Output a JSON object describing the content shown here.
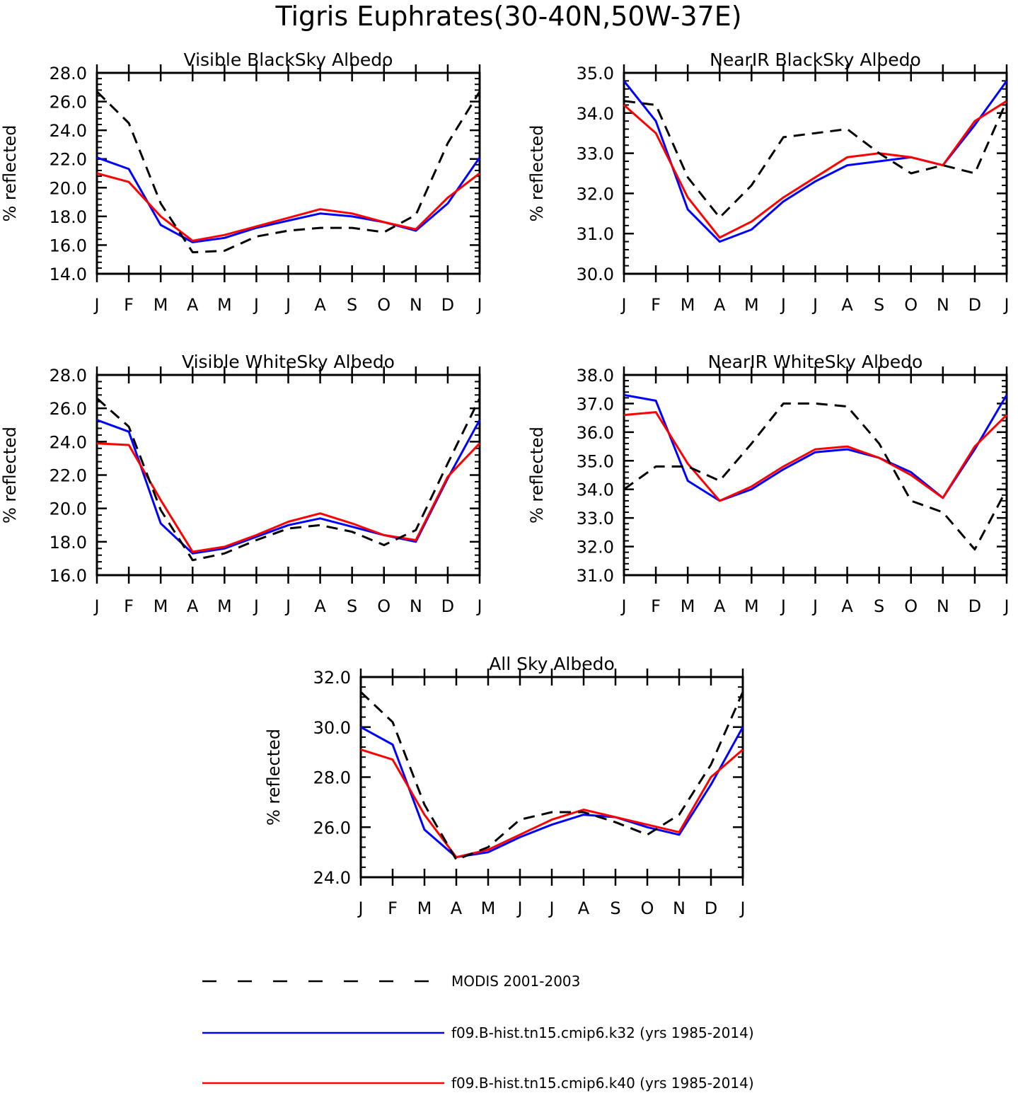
{
  "figure": {
    "title": "Tigris Euphrates(30-40N,50W-37E)"
  },
  "months": [
    "J",
    "F",
    "M",
    "A",
    "M",
    "J",
    "J",
    "A",
    "S",
    "O",
    "N",
    "D",
    "J"
  ],
  "series_styles": [
    {
      "key": "modis",
      "color": "#000000",
      "dashed": true
    },
    {
      "key": "k32",
      "color": "#0000ff",
      "dashed": false
    },
    {
      "key": "k40",
      "color": "#ff0000",
      "dashed": false
    }
  ],
  "legend": [
    {
      "key": "modis",
      "label": "MODIS 2001-2003",
      "color": "#000000",
      "dashed": true
    },
    {
      "key": "k32",
      "label": "f09.B-hist.tn15.cmip6.k32 (yrs 1985-2014)",
      "color": "#0000ff",
      "dashed": false
    },
    {
      "key": "k40",
      "label": "f09.B-hist.tn15.cmip6.k40 (yrs 1985-2014)",
      "color": "#ff0000",
      "dashed": false
    }
  ],
  "chart_data": [
    {
      "type": "line",
      "title": "Visible BlackSky Albedo",
      "ylabel": "% reflected",
      "ylim": [
        14,
        28
      ],
      "yticks": [
        "14.0",
        "16.0",
        "18.0",
        "20.0",
        "22.0",
        "24.0",
        "26.0",
        "28.0"
      ],
      "series": [
        {
          "name": "MODIS 2001-2003",
          "values": [
            26.7,
            24.5,
            18.9,
            15.5,
            15.6,
            16.6,
            17.0,
            17.2,
            17.2,
            16.9,
            18.1,
            23.1,
            26.7
          ]
        },
        {
          "name": "f09.B-hist.tn15.cmip6.k32 (yrs 1985-2014)",
          "values": [
            22.1,
            21.3,
            17.4,
            16.2,
            16.5,
            17.2,
            17.7,
            18.2,
            18.0,
            17.6,
            17.0,
            18.9,
            22.1
          ]
        },
        {
          "name": "f09.B-hist.tn15.cmip6.k40 (yrs 1985-2014)",
          "values": [
            21.0,
            20.4,
            18.0,
            16.3,
            16.7,
            17.3,
            17.9,
            18.5,
            18.2,
            17.6,
            17.1,
            19.3,
            21.0
          ]
        }
      ]
    },
    {
      "type": "line",
      "title": "NearIR BlackSky Albedo",
      "ylabel": "% reflected",
      "ylim": [
        30,
        35
      ],
      "yticks": [
        "30.0",
        "31.0",
        "32.0",
        "33.0",
        "34.0",
        "35.0"
      ],
      "series": [
        {
          "name": "MODIS 2001-2003",
          "values": [
            34.3,
            34.2,
            32.4,
            31.4,
            32.2,
            33.4,
            33.5,
            33.6,
            33.0,
            32.5,
            32.7,
            32.5,
            34.3
          ]
        },
        {
          "name": "f09.B-hist.tn15.cmip6.k32 (yrs 1985-2014)",
          "values": [
            34.8,
            33.8,
            31.6,
            30.8,
            31.1,
            31.8,
            32.3,
            32.7,
            32.8,
            32.9,
            32.7,
            33.7,
            34.8
          ]
        },
        {
          "name": "f09.B-hist.tn15.cmip6.k40 (yrs 1985-2014)",
          "values": [
            34.2,
            33.5,
            31.9,
            30.9,
            31.3,
            31.9,
            32.4,
            32.9,
            33.0,
            32.9,
            32.7,
            33.8,
            34.3
          ]
        }
      ]
    },
    {
      "type": "line",
      "title": "Visible WhiteSky Albedo",
      "ylabel": "% reflected",
      "ylim": [
        16,
        28
      ],
      "yticks": [
        "16.0",
        "18.0",
        "20.0",
        "22.0",
        "24.0",
        "26.0",
        "28.0"
      ],
      "series": [
        {
          "name": "MODIS 2001-2003",
          "values": [
            26.6,
            24.9,
            19.9,
            16.9,
            17.3,
            18.1,
            18.8,
            19.0,
            18.6,
            17.8,
            18.7,
            22.7,
            26.6
          ]
        },
        {
          "name": "f09.B-hist.tn15.cmip6.k32 (yrs 1985-2014)",
          "values": [
            25.3,
            24.6,
            19.1,
            17.3,
            17.6,
            18.3,
            19.0,
            19.4,
            18.9,
            18.4,
            18.0,
            21.8,
            25.3
          ]
        },
        {
          "name": "f09.B-hist.tn15.cmip6.k40 (yrs 1985-2014)",
          "values": [
            23.9,
            23.8,
            20.5,
            17.4,
            17.7,
            18.4,
            19.2,
            19.7,
            19.1,
            18.4,
            18.1,
            21.9,
            23.9
          ]
        }
      ]
    },
    {
      "type": "line",
      "title": "NearIR WhiteSky Albedo",
      "ylabel": "% reflected",
      "ylim": [
        31,
        38
      ],
      "yticks": [
        "31.0",
        "32.0",
        "33.0",
        "34.0",
        "35.0",
        "36.0",
        "37.0",
        "38.0"
      ],
      "series": [
        {
          "name": "MODIS 2001-2003",
          "values": [
            34.0,
            34.8,
            34.8,
            34.3,
            35.6,
            37.0,
            37.0,
            36.9,
            35.6,
            33.6,
            33.2,
            31.9,
            34.0
          ]
        },
        {
          "name": "f09.B-hist.tn15.cmip6.k32 (yrs 1985-2014)",
          "values": [
            37.3,
            37.1,
            34.3,
            33.6,
            34.0,
            34.7,
            35.3,
            35.4,
            35.1,
            34.6,
            33.7,
            35.4,
            37.3
          ]
        },
        {
          "name": "f09.B-hist.tn15.cmip6.k40 (yrs 1985-2014)",
          "values": [
            36.6,
            36.7,
            34.9,
            33.6,
            34.1,
            34.8,
            35.4,
            35.5,
            35.1,
            34.5,
            33.7,
            35.5,
            36.6
          ]
        }
      ]
    },
    {
      "type": "line",
      "title": "All Sky Albedo",
      "ylabel": "% reflected",
      "ylim": [
        24,
        32
      ],
      "yticks": [
        "24.0",
        "26.0",
        "28.0",
        "30.0",
        "32.0"
      ],
      "series": [
        {
          "name": "MODIS 2001-2003",
          "values": [
            31.4,
            30.2,
            26.9,
            24.7,
            25.2,
            26.3,
            26.6,
            26.6,
            26.2,
            25.7,
            26.5,
            28.5,
            31.4
          ]
        },
        {
          "name": "f09.B-hist.tn15.cmip6.k32 (yrs 1985-2014)",
          "values": [
            30.0,
            29.3,
            25.9,
            24.8,
            25.0,
            25.6,
            26.1,
            26.5,
            26.4,
            26.0,
            25.7,
            27.7,
            30.0
          ]
        },
        {
          "name": "f09.B-hist.tn15.cmip6.k40 (yrs 1985-2014)",
          "values": [
            29.1,
            28.7,
            26.5,
            24.8,
            25.1,
            25.7,
            26.3,
            26.7,
            26.4,
            26.1,
            25.8,
            28.0,
            29.1
          ]
        }
      ]
    }
  ]
}
